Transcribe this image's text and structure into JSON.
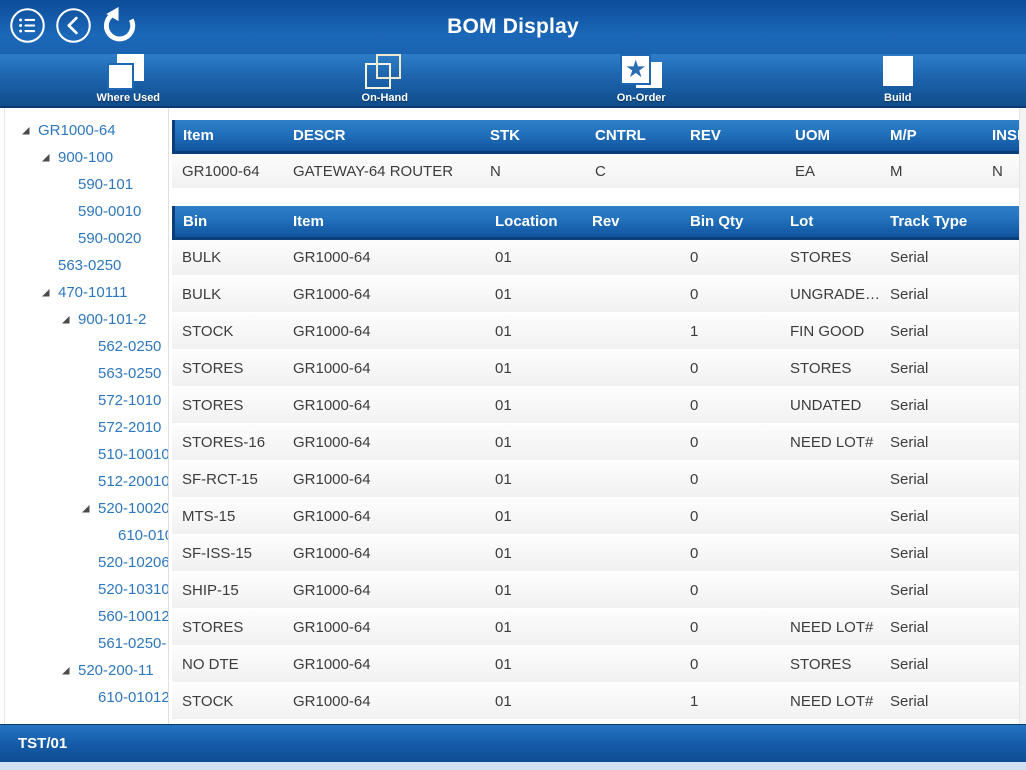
{
  "header": {
    "title": "BOM Display"
  },
  "topbar_icons": {
    "menu": "menu-list-icon",
    "back": "back-chevron-icon",
    "refresh": "refresh-icon"
  },
  "toolbar": {
    "items": [
      {
        "label": "Where Used",
        "icon": "where-used-icon"
      },
      {
        "label": "On-Hand",
        "icon": "on-hand-icon"
      },
      {
        "label": "On-Order",
        "icon": "on-order-icon"
      },
      {
        "label": "Build",
        "icon": "build-icon"
      }
    ]
  },
  "tree": {
    "items": [
      {
        "label": "GR1000-64",
        "level": 0,
        "expanded": true
      },
      {
        "label": "900-100",
        "level": 1,
        "expanded": true
      },
      {
        "label": "590-101",
        "level": 2,
        "expanded": false
      },
      {
        "label": "590-0010",
        "level": 2,
        "expanded": false
      },
      {
        "label": "590-0020",
        "level": 2,
        "expanded": false
      },
      {
        "label": "563-0250",
        "level": 1,
        "expanded": false
      },
      {
        "label": "470-10111",
        "level": 1,
        "expanded": true
      },
      {
        "label": "900-101-2",
        "level": 2,
        "expanded": true
      },
      {
        "label": "562-0250",
        "level": 3,
        "expanded": false
      },
      {
        "label": "563-0250",
        "level": 3,
        "expanded": false
      },
      {
        "label": "572-1010",
        "level": 3,
        "expanded": false
      },
      {
        "label": "572-2010",
        "level": 3,
        "expanded": false
      },
      {
        "label": "510-10010",
        "level": 3,
        "expanded": false
      },
      {
        "label": "512-20010",
        "level": 3,
        "expanded": false
      },
      {
        "label": "520-10020",
        "level": 3,
        "expanded": true
      },
      {
        "label": "610-010",
        "level": 4,
        "expanded": false
      },
      {
        "label": "520-10206",
        "level": 3,
        "expanded": false
      },
      {
        "label": "520-10310",
        "level": 3,
        "expanded": false
      },
      {
        "label": "560-10012",
        "level": 3,
        "expanded": false
      },
      {
        "label": "561-0250-",
        "level": 3,
        "expanded": false
      },
      {
        "label": "520-200-11",
        "level": 2,
        "expanded": true
      },
      {
        "label": "610-01012",
        "level": 3,
        "expanded": false
      }
    ]
  },
  "item_table": {
    "columns": [
      "Item",
      "DESCR",
      "STK",
      "CNTRL",
      "REV",
      "UOM",
      "M/P",
      "INSP"
    ],
    "rows": [
      [
        "GR1000-64",
        "GATEWAY-64 ROUTER",
        "N",
        "C",
        "",
        "EA",
        "M",
        "N"
      ]
    ]
  },
  "bin_table": {
    "columns": [
      "Bin",
      "Item",
      "Location",
      "Rev",
      "Bin Qty",
      "Lot",
      "Track Type"
    ],
    "rows": [
      [
        "BULK",
        "GR1000-64",
        "01",
        "",
        "0",
        "STORES",
        "Serial"
      ],
      [
        "BULK",
        "GR1000-64",
        "01",
        "",
        "0",
        "UNGRADE…",
        "Serial"
      ],
      [
        "STOCK",
        "GR1000-64",
        "01",
        "",
        "1",
        "FIN GOOD",
        "Serial"
      ],
      [
        "STORES",
        "GR1000-64",
        "01",
        "",
        "0",
        "STORES",
        "Serial"
      ],
      [
        "STORES",
        "GR1000-64",
        "01",
        "",
        "0",
        "UNDATED",
        "Serial"
      ],
      [
        "STORES-16",
        "GR1000-64",
        "01",
        "",
        "0",
        "NEED LOT#",
        "Serial"
      ],
      [
        "SF-RCT-15",
        "GR1000-64",
        "01",
        "",
        "0",
        "",
        "Serial"
      ],
      [
        "MTS-15",
        "GR1000-64",
        "01",
        "",
        "0",
        "",
        "Serial"
      ],
      [
        "SF-ISS-15",
        "GR1000-64",
        "01",
        "",
        "0",
        "",
        "Serial"
      ],
      [
        "SHIP-15",
        "GR1000-64",
        "01",
        "",
        "0",
        "",
        "Serial"
      ],
      [
        "STORES",
        "GR1000-64",
        "01",
        "",
        "0",
        "NEED LOT#",
        "Serial"
      ],
      [
        "NO DTE",
        "GR1000-64",
        "01",
        "",
        "0",
        "STORES",
        "Serial"
      ],
      [
        "STOCK",
        "GR1000-64",
        "01",
        "",
        "1",
        "NEED LOT#",
        "Serial"
      ]
    ]
  },
  "status_bar": {
    "text": "TST/01"
  },
  "colors": {
    "accent_blue": "#1b67b8",
    "toolbar_dark": "#114e8e",
    "header_gradient_top": "#2f80c8",
    "header_gradient_bottom": "#11549f",
    "tree_text": "#2e77bd",
    "star_blue": "#2a6db5",
    "row_bg": "#f1f1f1"
  }
}
